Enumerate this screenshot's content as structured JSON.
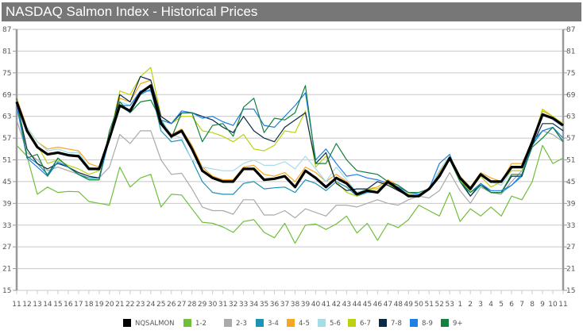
{
  "title": "NASDAQ Salmon Index - Historical Prices",
  "chart_data": {
    "type": "line",
    "title": "NASDAQ Salmon Index - Historical Prices",
    "xlabel": "",
    "ylabel": "",
    "ylim": [
      15,
      87
    ],
    "y_ticks": [
      15,
      21,
      27,
      33,
      39,
      45,
      51,
      57,
      63,
      69,
      75,
      81,
      87
    ],
    "grid": true,
    "legend_position": "bottom",
    "categories": [
      "11",
      "12",
      "13",
      "14",
      "15",
      "16",
      "17",
      "18",
      "19",
      "20",
      "21",
      "22",
      "23",
      "24",
      "25",
      "26",
      "27",
      "28",
      "29",
      "30",
      "31",
      "32",
      "33",
      "34",
      "35",
      "36",
      "37",
      "38",
      "39",
      "40",
      "41",
      "42",
      "43",
      "44",
      "45",
      "46",
      "47",
      "48",
      "49",
      "50",
      "51",
      "52",
      "53",
      "1",
      "2",
      "3",
      "4",
      "5",
      "6",
      "7",
      "8",
      "9",
      "10",
      "11"
    ],
    "series": [
      {
        "name": "1-2",
        "color": "#6fbf3a",
        "values": [
          55,
          52,
          41.5,
          43.5,
          42,
          42.3,
          42.2,
          39.5,
          39,
          38.5,
          49,
          43.5,
          46,
          47,
          38,
          41.5,
          41.3,
          37.5,
          33.8,
          33.5,
          32.5,
          31,
          34,
          34.5,
          31,
          29.5,
          33.5,
          28,
          33,
          33.3,
          31.8,
          33.3,
          35.5,
          30.8,
          33.5,
          28.8,
          33.5,
          32.3,
          34.5,
          38.5,
          37,
          35.5,
          42,
          34,
          37.5,
          35.5,
          38,
          35.5,
          41,
          40,
          45,
          55,
          50,
          51.5
        ]
      },
      {
        "name": "2-3",
        "color": "#aaaaaa",
        "values": [
          62,
          53,
          51,
          48,
          49,
          48,
          47,
          46,
          46,
          49,
          58,
          55.5,
          59,
          59,
          51,
          47,
          47.3,
          43,
          38,
          37,
          37,
          36,
          40,
          40,
          35.8,
          35.8,
          37,
          35,
          37.5,
          36.5,
          35.5,
          38.5,
          38.5,
          38,
          39,
          40,
          39,
          38.5,
          40,
          41,
          40.5,
          42.5,
          47.5,
          42.5,
          39,
          43.5,
          42,
          41.5,
          45,
          48,
          56,
          59,
          58,
          56
        ]
      },
      {
        "name": "3-4",
        "color": "#1b93b5",
        "values": [
          66,
          52,
          50,
          47,
          51.5,
          49,
          47,
          46,
          46,
          57,
          66,
          64,
          69,
          70.5,
          59,
          56,
          56.5,
          51,
          45,
          42,
          41.5,
          41.5,
          44.5,
          45,
          43,
          43.3,
          43.5,
          42,
          45.5,
          44.5,
          42.5,
          45,
          43.5,
          41,
          42,
          42,
          44.5,
          42.5,
          41.5,
          41,
          43,
          48,
          52,
          46,
          41,
          44,
          42,
          42,
          44,
          46.5,
          55,
          59,
          60,
          56
        ]
      },
      {
        "name": "4-5",
        "color": "#f5a623",
        "values": [
          68,
          60,
          56,
          54,
          54.5,
          54,
          53.5,
          50,
          49,
          57,
          68,
          67,
          72,
          73,
          62,
          58,
          59.5,
          55,
          49,
          46.5,
          45.5,
          45.5,
          49,
          49.5,
          47,
          46.5,
          47.5,
          45,
          49,
          47.5,
          45,
          47,
          45,
          42,
          43,
          43.5,
          45.5,
          44,
          41.5,
          41,
          43,
          47.5,
          52,
          46.5,
          43.5,
          47.5,
          46,
          45,
          50,
          50,
          56,
          64.5,
          63,
          61
        ]
      },
      {
        "name": "5-6",
        "color": "#a6dbe8",
        "values": [
          67,
          60,
          56,
          53.5,
          54,
          53,
          53,
          49,
          48,
          57,
          67,
          66,
          70,
          71,
          62,
          58,
          57,
          51,
          49,
          48.5,
          48,
          48,
          50,
          51,
          49.5,
          49.5,
          50.5,
          48.5,
          52,
          48.5,
          45,
          49,
          45.5,
          42,
          43,
          43,
          45,
          43.5,
          41.5,
          41,
          43,
          48,
          52,
          46,
          43,
          47,
          45,
          44,
          48,
          48,
          56,
          64,
          62,
          60
        ]
      },
      {
        "name": "6-7",
        "color": "#bcd20f",
        "values": [
          67,
          59.5,
          55,
          50,
          51,
          49.5,
          48.5,
          47,
          48,
          57,
          70,
          69,
          74,
          76.5,
          63,
          61,
          63,
          63,
          59,
          58.5,
          57.5,
          56,
          58,
          54,
          53.5,
          55,
          59,
          58.5,
          64.5,
          49,
          52,
          45,
          42,
          41,
          43,
          43,
          44.5,
          42.5,
          41.5,
          41,
          43,
          47,
          52,
          45.5,
          42.5,
          46.5,
          43.5,
          45,
          48,
          48,
          56,
          65,
          63,
          61
        ]
      },
      {
        "name": "7-8",
        "color": "#0b2a45",
        "values": [
          67,
          54,
          50,
          48.5,
          50,
          49,
          47.5,
          46.5,
          46,
          57,
          69,
          67,
          74,
          73,
          63,
          61,
          64,
          64,
          63,
          62,
          60,
          58.5,
          63,
          59,
          57,
          56,
          60,
          62,
          64,
          50,
          53,
          44.5,
          42.5,
          43,
          43,
          45,
          44,
          42.5,
          41,
          41,
          43,
          47,
          51.5,
          45,
          41,
          44.5,
          42,
          42,
          46.5,
          46.5,
          55,
          61,
          61,
          59
        ]
      },
      {
        "name": "8-9",
        "color": "#1e7fe6",
        "values": [
          66,
          51.5,
          49,
          46.5,
          50.5,
          49,
          47,
          45.5,
          45.5,
          57,
          66,
          66,
          70,
          70,
          62,
          61,
          64.5,
          64,
          62.5,
          63,
          61.5,
          60.5,
          65,
          65,
          60.5,
          60,
          63,
          66,
          69.5,
          51,
          54,
          50,
          46.5,
          47,
          46,
          45.5,
          44.5,
          43.5,
          42,
          41.5,
          43,
          50,
          52.5,
          45,
          42,
          44.5,
          42.5,
          42.5,
          44,
          47,
          56,
          59,
          60,
          57
        ]
      },
      {
        "name": "9+",
        "color": "#13823f",
        "values": [
          68,
          51.5,
          52.5,
          46.5,
          51.5,
          49,
          47,
          45.5,
          45.5,
          59,
          67,
          64,
          67,
          67.5,
          62,
          57,
          64,
          64,
          56,
          60.5,
          61,
          57.5,
          65.5,
          68,
          58.5,
          62.5,
          62,
          64,
          71.5,
          50,
          50,
          55.5,
          51,
          48,
          47.5,
          47,
          45,
          44,
          42,
          42,
          43,
          47,
          51,
          45,
          42,
          44,
          42,
          42,
          47,
          47,
          54.5,
          57,
          60,
          56
        ]
      },
      {
        "name": "NQSALMON",
        "color": "#000000",
        "values": [
          67,
          59,
          54.5,
          52.5,
          53,
          52.3,
          52,
          48.5,
          48.5,
          57,
          66,
          64.5,
          69.5,
          71.5,
          61,
          57.5,
          59,
          54,
          48,
          46,
          45,
          45,
          48.5,
          48.5,
          45.5,
          45.8,
          46.5,
          43.5,
          48,
          46,
          43.5,
          46,
          44.5,
          41.5,
          42.5,
          42,
          45,
          43,
          41,
          41,
          43,
          46.5,
          51.5,
          46,
          43,
          47,
          45,
          45,
          49,
          49,
          56,
          63.5,
          62.5,
          60.5
        ]
      }
    ],
    "legend": [
      "NQSALMON",
      "1-2",
      "2-3",
      "3-4",
      "4-5",
      "5-6",
      "6-7",
      "7-8",
      "8-9",
      "9+"
    ]
  }
}
